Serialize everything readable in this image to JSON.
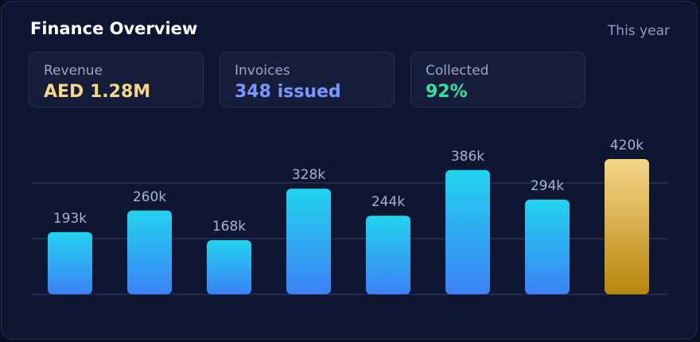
{
  "header": {
    "title": "Finance Overview",
    "period": "This year"
  },
  "kpis": [
    {
      "label": "Revenue",
      "value": "AED 1.28M",
      "color": "#f5d78a"
    },
    {
      "label": "Invoices",
      "value": "348 issued",
      "color": "#7b96ff"
    },
    {
      "label": "Collected",
      "value": "92%",
      "color": "#33e0a6"
    }
  ],
  "colors": {
    "bar_top": "#22d3ee",
    "bar_bottom": "#3b82f6",
    "highlight_top": "#f5d78a",
    "highlight_bottom": "#b8860b",
    "grid": "#253055"
  },
  "chart_data": {
    "type": "bar",
    "values": [
      193,
      260,
      168,
      328,
      244,
      386,
      294,
      420
    ],
    "labels": [
      "193k",
      "260k",
      "168k",
      "328k",
      "244k",
      "386k",
      "294k",
      "420k"
    ],
    "highlight_index": 7,
    "ylim": [
      0,
      420
    ],
    "grid": true
  }
}
